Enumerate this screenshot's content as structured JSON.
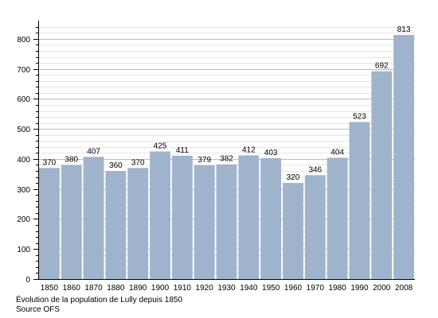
{
  "chart_data": {
    "type": "bar",
    "categories": [
      "1850",
      "1860",
      "1870",
      "1880",
      "1890",
      "1900",
      "1910",
      "1920",
      "1930",
      "1940",
      "1950",
      "1960",
      "1970",
      "1980",
      "1990",
      "2000",
      "2008"
    ],
    "values": [
      370,
      380,
      407,
      360,
      370,
      425,
      411,
      379,
      382,
      412,
      403,
      320,
      346,
      404,
      523,
      692,
      813
    ],
    "ylim": [
      0,
      850
    ],
    "yticks": [
      0,
      100,
      200,
      300,
      400,
      500,
      600,
      700,
      800
    ],
    "minor_step": 20,
    "grid": true,
    "bar_color": "#9fb4cc"
  },
  "caption": {
    "line1": "Évolution de la population de Lully depuis 1850",
    "line2": "Source OFS"
  }
}
